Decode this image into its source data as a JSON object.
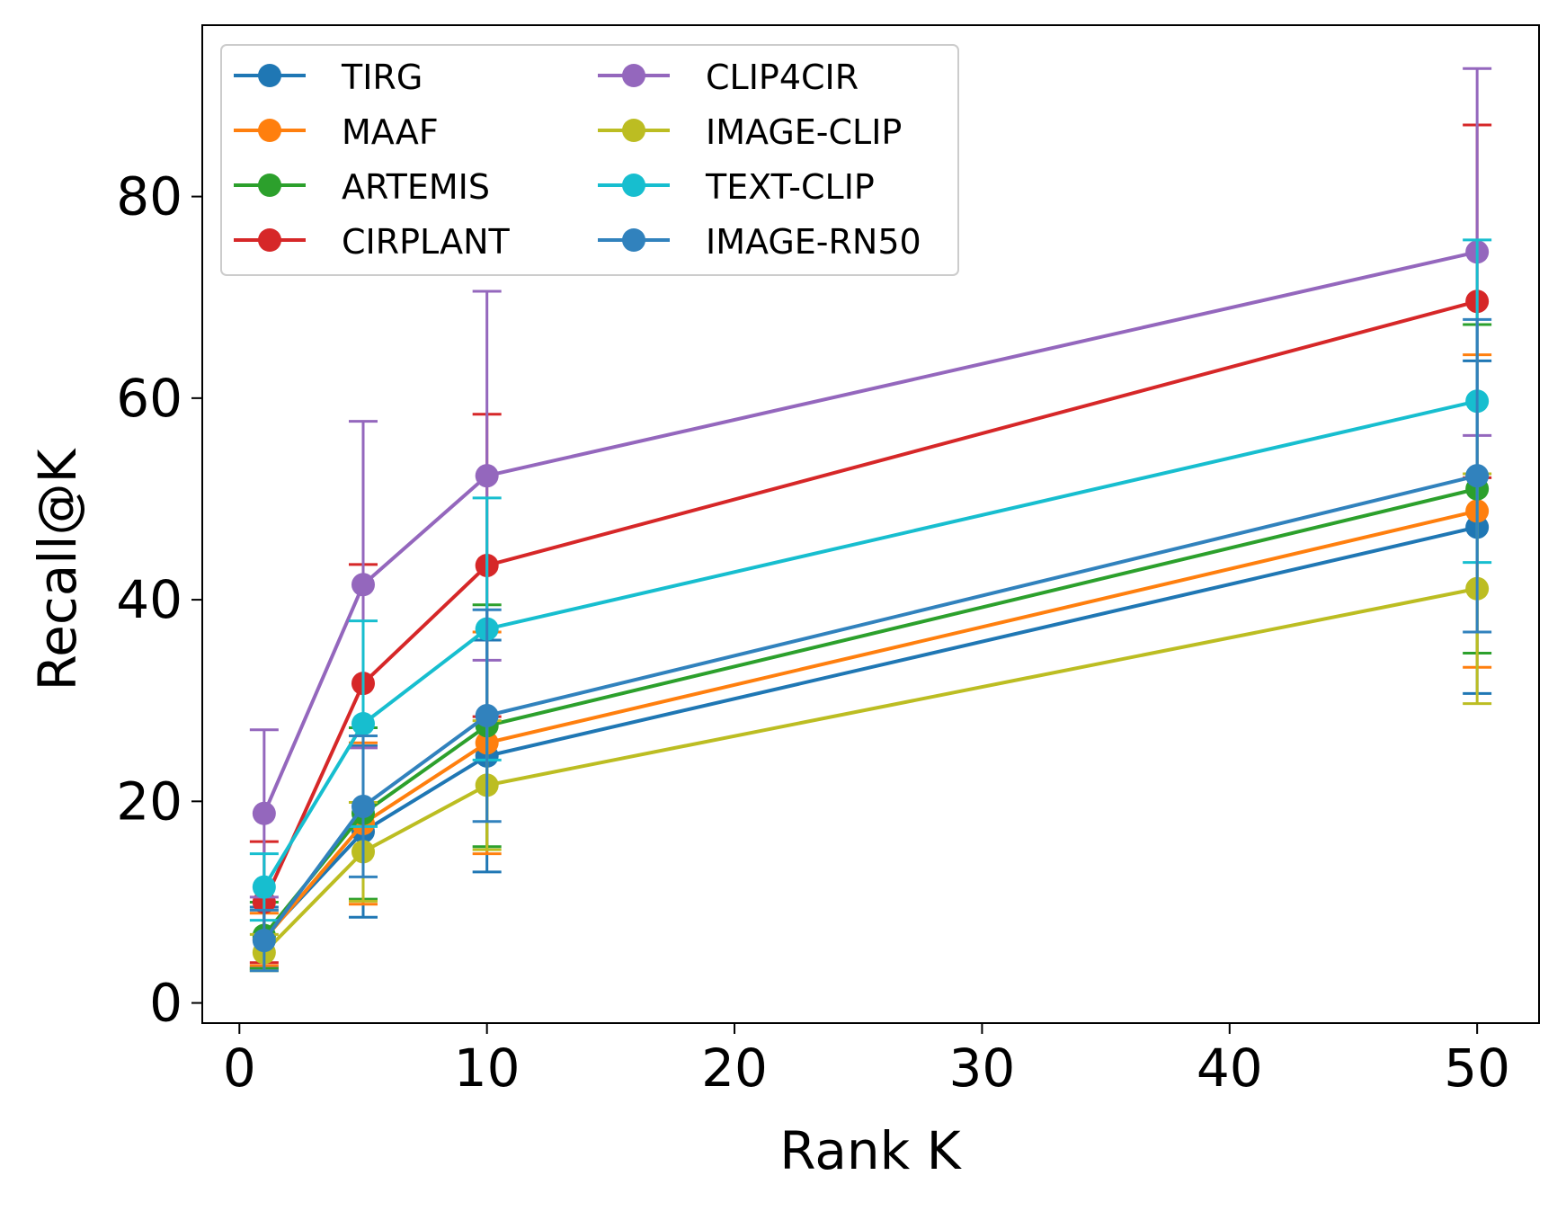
{
  "chart_data": {
    "type": "line",
    "title": "",
    "xlabel": "Rank K",
    "ylabel": "Recall@K",
    "x": [
      1,
      5,
      10,
      50
    ],
    "xlim": [
      -1.5,
      52.5
    ],
    "ylim": [
      -2,
      97
    ],
    "xticks": [
      0,
      10,
      20,
      30,
      40,
      50
    ],
    "xtick_labels": [
      "0",
      "10",
      "20",
      "30",
      "40",
      "50"
    ],
    "yticks": [
      0,
      20,
      40,
      60,
      80
    ],
    "ytick_labels": [
      "0",
      "20",
      "40",
      "60",
      "80"
    ],
    "grid": false,
    "legend": {
      "placement": "top-left",
      "columns": 2
    },
    "series": [
      {
        "name": "TIRG",
        "color": "#1f77b4",
        "values": [
          6.5,
          17.0,
          24.5,
          47.2
        ],
        "err_low": [
          3.0,
          8.5,
          11.5,
          16.5
        ],
        "err_high": [
          3.0,
          8.5,
          11.5,
          16.5
        ]
      },
      {
        "name": "MAAF",
        "color": "#ff7f0e",
        "values": [
          6.3,
          17.8,
          25.8,
          48.8
        ],
        "err_low": [
          2.6,
          8.0,
          11.0,
          15.5
        ],
        "err_high": [
          2.6,
          8.0,
          11.0,
          15.5
        ]
      },
      {
        "name": "ARTEMIS",
        "color": "#2ca02c",
        "values": [
          6.7,
          18.8,
          27.5,
          51.0
        ],
        "err_low": [
          3.3,
          8.5,
          12.0,
          16.3
        ],
        "err_high": [
          3.3,
          8.5,
          12.0,
          16.3
        ]
      },
      {
        "name": "CIRPLANT",
        "color": "#d62728",
        "values": [
          10.0,
          31.7,
          43.4,
          69.6
        ],
        "err_low": [
          6.0,
          11.8,
          15.0,
          17.5
        ],
        "err_high": [
          6.0,
          11.8,
          15.0,
          17.5
        ]
      },
      {
        "name": "CLIP4CIR",
        "color": "#9467bd",
        "values": [
          18.8,
          41.5,
          52.3,
          74.5
        ],
        "err_low": [
          8.3,
          16.2,
          18.3,
          18.2
        ],
        "err_high": [
          8.3,
          16.2,
          18.3,
          18.2
        ]
      },
      {
        "name": "IMAGE-CLIP",
        "color": "#bcbd22",
        "values": [
          5.0,
          15.0,
          21.6,
          41.1
        ],
        "err_low": [
          1.8,
          4.9,
          6.4,
          11.4
        ],
        "err_high": [
          1.8,
          4.9,
          6.4,
          11.4
        ]
      },
      {
        "name": "TEXT-CLIP",
        "color": "#17becf",
        "values": [
          11.5,
          27.7,
          37.1,
          59.7
        ],
        "err_low": [
          3.3,
          10.2,
          13.0,
          16.0
        ],
        "err_high": [
          3.3,
          10.2,
          13.0,
          16.0
        ]
      },
      {
        "name": "IMAGE-RN50",
        "color": "#3182bd",
        "values": [
          6.2,
          19.5,
          28.5,
          52.3
        ],
        "err_low": [
          3.0,
          7.0,
          10.5,
          15.5
        ],
        "err_high": [
          3.0,
          7.0,
          10.5,
          15.5
        ]
      }
    ]
  }
}
